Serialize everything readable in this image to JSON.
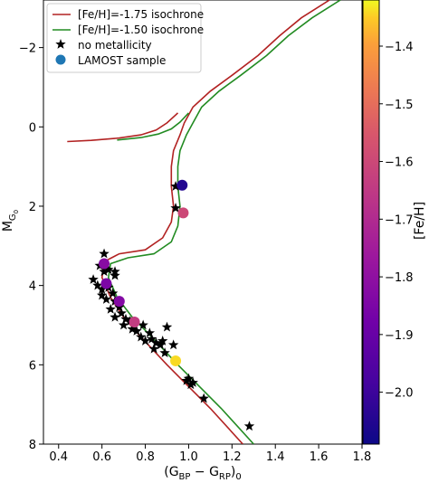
{
  "chart_data": {
    "type": "scatter",
    "xlabel_main": "(G",
    "xlabel_sub1": "BP",
    "xlabel_minus": " − G",
    "xlabel_sub2": "RP",
    "xlabel_close": ")",
    "xlabel_sub3": "0",
    "ylabel_main": "M",
    "ylabel_sub": "G",
    "ylabel_sub2": "0",
    "colorbar_label": "[Fe/H]",
    "xlim": [
      0.33,
      1.8
    ],
    "ylim": [
      8.0,
      -3.2
    ],
    "xticks": [
      0.4,
      0.6,
      0.8,
      1.0,
      1.2,
      1.4,
      1.6,
      1.8
    ],
    "xtick_labels": [
      "0.4",
      "0.6",
      "0.8",
      "1.0",
      "1.2",
      "1.4",
      "1.6",
      "1.8"
    ],
    "yticks": [
      -2,
      0,
      2,
      4,
      6,
      8
    ],
    "ytick_labels": [
      "−2",
      "0",
      "2",
      "4",
      "6",
      "8"
    ],
    "colorbar": {
      "colormap": "plasma",
      "range": [
        -2.09,
        -1.32
      ],
      "ticks": [
        -1.4,
        -1.5,
        -1.6,
        -1.7,
        -1.8,
        -1.9,
        -2.0
      ],
      "tick_labels": [
        "−1.4",
        "−1.5",
        "−1.6",
        "−1.7",
        "−1.8",
        "−1.9",
        "−2.0"
      ]
    },
    "legend": {
      "placement": "top-left",
      "entries": [
        {
          "label": "[Fe/H]=-1.75 isochrone",
          "marker": "line",
          "color": "#b22222"
        },
        {
          "label": "[Fe/H]=-1.50 isochrone",
          "marker": "line",
          "color": "#228b22"
        },
        {
          "label": "no metallicity",
          "marker": "star",
          "color": "#000000"
        },
        {
          "label": "LAMOST sample",
          "marker": "circle",
          "color": "#1f77b4"
        }
      ]
    },
    "series": [
      {
        "name": "[Fe/H]=-1.75 isochrone",
        "kind": "line",
        "color": "#b22222",
        "points": [
          [
            1.25,
            8.0
          ],
          [
            1.1,
            7.1
          ],
          [
            0.9,
            6.0
          ],
          [
            0.78,
            5.3
          ],
          [
            0.7,
            4.8
          ],
          [
            0.64,
            4.3
          ],
          [
            0.6,
            3.8
          ],
          [
            0.61,
            3.4
          ],
          [
            0.68,
            3.2
          ],
          [
            0.8,
            3.1
          ],
          [
            0.88,
            2.8
          ],
          [
            0.92,
            2.4
          ],
          [
            0.93,
            2.0
          ],
          [
            0.92,
            1.5
          ],
          [
            0.92,
            1.0
          ],
          [
            0.93,
            0.6
          ],
          [
            0.96,
            0.2
          ],
          [
            0.98,
            -0.1
          ],
          [
            1.02,
            -0.5
          ],
          [
            1.1,
            -0.9
          ],
          [
            1.2,
            -1.3
          ],
          [
            1.32,
            -1.8
          ],
          [
            1.42,
            -2.3
          ],
          [
            1.52,
            -2.75
          ],
          [
            1.65,
            -3.2
          ]
        ]
      },
      {
        "name": "[Fe/H]=-1.50 isochrone",
        "kind": "line",
        "color": "#228b22",
        "points": [
          [
            1.3,
            8.0
          ],
          [
            1.15,
            7.1
          ],
          [
            0.95,
            6.0
          ],
          [
            0.83,
            5.3
          ],
          [
            0.74,
            4.8
          ],
          [
            0.67,
            4.3
          ],
          [
            0.63,
            3.8
          ],
          [
            0.64,
            3.45
          ],
          [
            0.72,
            3.3
          ],
          [
            0.84,
            3.2
          ],
          [
            0.92,
            2.9
          ],
          [
            0.95,
            2.5
          ],
          [
            0.96,
            2.0
          ],
          [
            0.95,
            1.5
          ],
          [
            0.95,
            1.0
          ],
          [
            0.96,
            0.6
          ],
          [
            0.99,
            0.2
          ],
          [
            1.02,
            -0.1
          ],
          [
            1.06,
            -0.5
          ],
          [
            1.14,
            -0.9
          ],
          [
            1.24,
            -1.3
          ],
          [
            1.36,
            -1.8
          ],
          [
            1.46,
            -2.3
          ],
          [
            1.57,
            -2.75
          ],
          [
            1.7,
            -3.2
          ]
        ]
      },
      {
        "name": "[Fe/H]=-1.75 isochrone",
        "kind": "line",
        "color": "#b22222",
        "points": [
          [
            0.44,
            0.37
          ],
          [
            0.55,
            0.34
          ],
          [
            0.68,
            0.28
          ],
          [
            0.78,
            0.2
          ],
          [
            0.85,
            0.08
          ],
          [
            0.9,
            -0.1
          ],
          [
            0.95,
            -0.35
          ]
        ]
      },
      {
        "name": "[Fe/H]=-1.50 isochrone",
        "kind": "line",
        "color": "#228b22",
        "points": [
          [
            0.67,
            0.33
          ],
          [
            0.78,
            0.27
          ],
          [
            0.86,
            0.18
          ],
          [
            0.92,
            0.05
          ],
          [
            0.96,
            -0.12
          ],
          [
            1.0,
            -0.35
          ]
        ]
      },
      {
        "name": "no metallicity",
        "kind": "star",
        "color": "#000000",
        "points": [
          [
            0.61,
            3.2
          ],
          [
            0.59,
            3.5
          ],
          [
            0.61,
            3.65
          ],
          [
            0.63,
            3.6
          ],
          [
            0.66,
            3.75
          ],
          [
            0.56,
            3.85
          ],
          [
            0.58,
            4.0
          ],
          [
            0.6,
            4.1
          ],
          [
            0.63,
            4.05
          ],
          [
            0.6,
            4.25
          ],
          [
            0.65,
            4.2
          ],
          [
            0.62,
            4.35
          ],
          [
            0.66,
            4.4
          ],
          [
            0.64,
            4.6
          ],
          [
            0.68,
            4.55
          ],
          [
            0.69,
            4.7
          ],
          [
            0.66,
            4.8
          ],
          [
            0.71,
            4.85
          ],
          [
            0.73,
            4.9
          ],
          [
            0.7,
            5.0
          ],
          [
            0.74,
            5.1
          ],
          [
            0.76,
            5.15
          ],
          [
            0.79,
            5.0
          ],
          [
            0.82,
            5.2
          ],
          [
            0.78,
            5.3
          ],
          [
            0.8,
            5.4
          ],
          [
            0.83,
            5.35
          ],
          [
            0.85,
            5.45
          ],
          [
            0.87,
            5.5
          ],
          [
            0.84,
            5.6
          ],
          [
            0.88,
            5.4
          ],
          [
            0.9,
            5.05
          ],
          [
            0.93,
            5.5
          ],
          [
            0.89,
            5.7
          ],
          [
            0.99,
            6.4
          ],
          [
            1.01,
            6.5
          ],
          [
            1.0,
            6.35
          ],
          [
            1.02,
            6.45
          ],
          [
            1.07,
            6.85
          ],
          [
            1.28,
            7.55
          ],
          [
            0.94,
            1.5
          ],
          [
            0.94,
            2.05
          ],
          [
            0.66,
            3.65
          ]
        ]
      },
      {
        "name": "LAMOST sample",
        "kind": "circle",
        "points": [
          [
            0.97,
            1.47,
            -2.05
          ],
          [
            0.975,
            2.17,
            -1.6
          ],
          [
            0.61,
            3.45,
            -1.82
          ],
          [
            0.62,
            3.95,
            -1.85
          ],
          [
            0.68,
            4.4,
            -1.83
          ],
          [
            0.75,
            4.92,
            -1.64
          ],
          [
            0.94,
            5.9,
            -1.34
          ]
        ]
      }
    ]
  }
}
